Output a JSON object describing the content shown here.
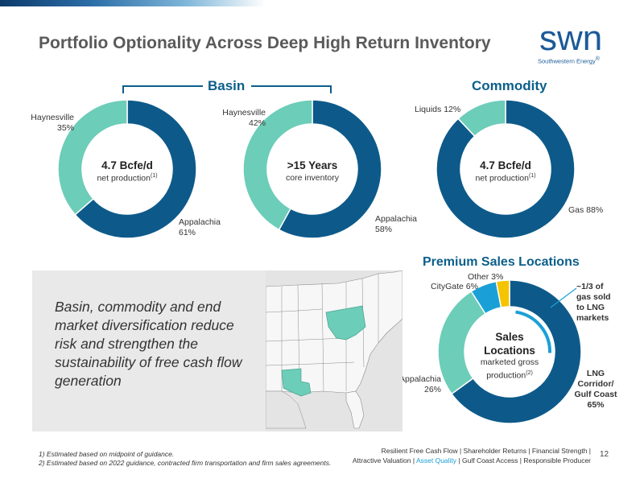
{
  "header": {
    "title": "Portfolio Optionality Across Deep High Return Inventory",
    "logo_text": "swn",
    "logo_sub": "Southwestern Energy",
    "logo_trademark": "®"
  },
  "sections": {
    "basin": "Basin",
    "commodity": "Commodity",
    "premium": "Premium Sales Locations"
  },
  "colors": {
    "dark_blue": "#0d5a8a",
    "teal": "#6ccdb8",
    "light_blue": "#1aa0d6",
    "yellow": "#f5c400",
    "title_gray": "#5a5a5a",
    "section_blue": "#0b5f8a"
  },
  "chart_data": [
    {
      "type": "pie",
      "variant": "donut",
      "group": "Basin",
      "slices": [
        {
          "name": "Appalachia",
          "value": 61,
          "label": "61%",
          "color": "#0d5a8a"
        },
        {
          "name": "Haynesville",
          "value": 35,
          "label": "35%",
          "color": "#6ccdb8"
        }
      ],
      "center_title": "4.7 Bcfe/d",
      "center_sub": "net production",
      "center_note": "(1)"
    },
    {
      "type": "pie",
      "variant": "donut",
      "group": "Basin",
      "slices": [
        {
          "name": "Appalachia",
          "value": 58,
          "label": "58%",
          "color": "#0d5a8a"
        },
        {
          "name": "Haynesville",
          "value": 42,
          "label": "42%",
          "color": "#6ccdb8"
        }
      ],
      "center_title": ">15 Years",
      "center_sub": "core inventory"
    },
    {
      "type": "pie",
      "variant": "donut",
      "group": "Commodity",
      "slices": [
        {
          "name": "Gas",
          "value": 88,
          "label": "Gas 88%",
          "color": "#0d5a8a"
        },
        {
          "name": "Liquids",
          "value": 12,
          "label": "Liquids 12%",
          "color": "#6ccdb8"
        }
      ],
      "center_title": "4.7 Bcfe/d",
      "center_sub": "net production",
      "center_note": "(1)"
    },
    {
      "type": "pie",
      "variant": "donut",
      "group": "Premium Sales Locations",
      "slices": [
        {
          "name": "LNG Corridor/ Gulf Coast",
          "value": 65,
          "label": "65%",
          "color": "#0d5a8a"
        },
        {
          "name": "Appalachia",
          "value": 26,
          "label": "26%",
          "color": "#6ccdb8"
        },
        {
          "name": "CityGate",
          "value": 6,
          "label": "CityGate 6%",
          "color": "#1aa0d6"
        },
        {
          "name": "Other",
          "value": 3,
          "label": "Other 3%",
          "color": "#f5c400"
        }
      ],
      "center_title_line1": "Sales",
      "center_title_line2": "Locations",
      "center_sub_line1": "marketed gross",
      "center_sub_line2": "production",
      "center_note": "(2)",
      "callout": [
        "~1/3 of",
        "gas sold",
        "to LNG",
        "markets"
      ]
    }
  ],
  "labels": {
    "d1_haynesville": "Haynesville",
    "d1_haynesville_pct": "35%",
    "d1_appalachia": "Appalachia",
    "d1_appalachia_pct": "61%",
    "d2_haynesville": "Haynesville",
    "d2_haynesville_pct": "42%",
    "d2_appalachia": "Appalachia",
    "d2_appalachia_pct": "58%",
    "d3_liquids": "Liquids 12%",
    "d3_gas": "Gas 88%",
    "d4_other": "Other 3%",
    "d4_citygate": "CityGate 6%",
    "d4_appalachia": "Appalachia",
    "d4_appalachia_pct": "26%",
    "d4_lng_1": "LNG",
    "d4_lng_2": "Corridor/",
    "d4_lng_3": "Gulf Coast",
    "d4_lng_pct": "65%"
  },
  "quote": "Basin, commodity and end market diversification reduce risk and strengthen the sustainability of free cash flow generation",
  "footnotes": {
    "note1": "1) Estimated based on midpoint of guidance.",
    "note2": "2) Estimated based on 2022 guidance, contracted firm transportation and firm sales agreements."
  },
  "footer": {
    "line1": "Resilient Free Cash Flow | Shareholder Returns | Financial Strength |",
    "line2_pre": "Attractive Valuation |",
    "line2_highlight": "Asset Quality",
    "line2_post": "| Gulf Coast Access | Responsible Producer",
    "page": "12"
  }
}
